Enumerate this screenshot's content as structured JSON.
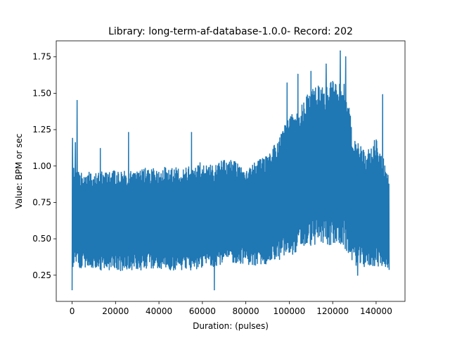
{
  "chart_data": {
    "type": "line",
    "title": "Library: long-term-af-database-1.0.0- Record: 202",
    "xlabel": "Duration: (pulses)",
    "ylabel": "Value: BPM or sec",
    "xlim": [
      -7300,
      153300
    ],
    "ylim": [
      0.07,
      1.86
    ],
    "xticks": [
      0,
      20000,
      40000,
      60000,
      80000,
      100000,
      120000,
      140000
    ],
    "yticks": [
      0.25,
      0.5,
      0.75,
      1.0,
      1.25,
      1.5,
      1.75
    ],
    "xtick_labels": [
      "0",
      "20000",
      "40000",
      "60000",
      "80000",
      "100000",
      "120000",
      "140000"
    ],
    "ytick_labels": [
      "0.25",
      "0.50",
      "0.75",
      "1.00",
      "1.25",
      "1.50",
      "1.75"
    ],
    "grid": false,
    "series": [
      {
        "color": "#1f77b4",
        "x_extent": [
          0,
          146000
        ],
        "band_x": [
          0,
          5000,
          10000,
          15000,
          20000,
          25000,
          30000,
          35000,
          40000,
          45000,
          50000,
          55000,
          60000,
          65000,
          70000,
          75000,
          80000,
          85000,
          90000,
          95000,
          100000,
          105000,
          110000,
          115000,
          120000,
          125000,
          130000,
          135000,
          140000,
          146000
        ],
        "band_low": [
          0.3,
          0.3,
          0.29,
          0.28,
          0.28,
          0.28,
          0.28,
          0.29,
          0.28,
          0.28,
          0.28,
          0.28,
          0.3,
          0.31,
          0.33,
          0.33,
          0.33,
          0.3,
          0.33,
          0.35,
          0.38,
          0.42,
          0.45,
          0.46,
          0.45,
          0.44,
          0.32,
          0.3,
          0.31,
          0.3
        ],
        "band_high": [
          1.0,
          0.97,
          0.95,
          0.98,
          0.97,
          0.97,
          0.97,
          0.99,
          0.98,
          1.0,
          0.98,
          1.0,
          1.03,
          1.0,
          1.05,
          1.05,
          1.0,
          1.03,
          1.08,
          1.2,
          1.35,
          1.4,
          1.55,
          1.55,
          1.6,
          1.6,
          1.2,
          1.1,
          1.2,
          0.95
        ],
        "peaks": [
          {
            "x": 0,
            "y": 0.15
          },
          {
            "x": 200,
            "y": 1.19
          },
          {
            "x": 1500,
            "y": 1.16
          },
          {
            "x": 2300,
            "y": 1.45
          },
          {
            "x": 13000,
            "y": 1.12
          },
          {
            "x": 26000,
            "y": 1.23
          },
          {
            "x": 55000,
            "y": 1.23
          },
          {
            "x": 65500,
            "y": 0.15
          },
          {
            "x": 99000,
            "y": 1.57
          },
          {
            "x": 104000,
            "y": 1.63
          },
          {
            "x": 110000,
            "y": 1.65
          },
          {
            "x": 117000,
            "y": 1.7
          },
          {
            "x": 123500,
            "y": 1.79
          },
          {
            "x": 126000,
            "y": 1.75
          },
          {
            "x": 131500,
            "y": 0.25
          },
          {
            "x": 143000,
            "y": 1.49
          },
          {
            "x": 146000,
            "y": 0.29
          }
        ]
      }
    ]
  }
}
